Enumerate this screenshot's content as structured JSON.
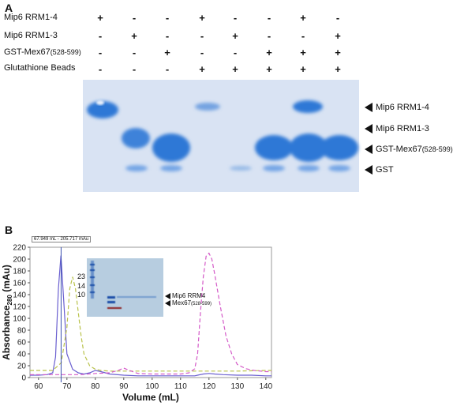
{
  "panel_a": {
    "label": "A",
    "rows": [
      {
        "label": "Mip6 RRM1-4",
        "values": [
          "+",
          "-",
          "-",
          "+",
          "-",
          "-",
          "+",
          "-"
        ]
      },
      {
        "label": "Mip6 RRM1-3",
        "values": [
          "-",
          "+",
          "-",
          "-",
          "+",
          "-",
          "-",
          "+"
        ]
      },
      {
        "label_main": "GST-Mex67",
        "label_sub": "(528-599)",
        "values": [
          "-",
          "-",
          "+",
          "-",
          "-",
          "+",
          "+",
          "+"
        ]
      },
      {
        "label": "Glutathione Beads",
        "values": [
          "-",
          "-",
          "-",
          "+",
          "+",
          "+",
          "+",
          "+"
        ]
      }
    ],
    "band_labels": [
      {
        "text": "Mip6 RRM1-4"
      },
      {
        "text": "Mip6 RRM1-3"
      },
      {
        "text_main": "GST-Mex67",
        "text_sub": "(528-599)"
      },
      {
        "text": "GST"
      }
    ],
    "gel_colors": {
      "background": "#d9e3f3",
      "band": "#2f78d6"
    }
  },
  "panel_b": {
    "label": "B",
    "readout": "67.949 mL - 205.717 mAu",
    "inset": {
      "markers": [
        "23",
        "14",
        "10"
      ],
      "labels": [
        {
          "text": "Mip6 RRM4"
        },
        {
          "text_main": "Mex67",
          "text_sub": "(528-599)"
        }
      ],
      "background": "#b7cde0"
    }
  },
  "chart_data": {
    "type": "line",
    "xlabel": "Volume (mL)",
    "ylabel_main": "Absorbance",
    "ylabel_sub": "280",
    "ylabel_unit": "(mAu)",
    "xlim": [
      57,
      142
    ],
    "ylim": [
      0,
      220
    ],
    "xticks": [
      60,
      70,
      80,
      90,
      100,
      110,
      120,
      130,
      140
    ],
    "yticks": [
      0,
      20,
      40,
      60,
      80,
      100,
      120,
      140,
      160,
      180,
      200,
      220
    ],
    "grid": false,
    "marker_line_x": 67.949,
    "series": [
      {
        "color": "#6a5fd0",
        "style": "solid",
        "x": [
          57,
          60,
          63,
          65,
          66,
          67,
          67.9,
          69,
          70,
          72,
          74,
          76,
          78,
          80,
          82,
          85,
          90,
          95,
          100,
          105,
          110,
          115,
          116,
          118,
          120,
          122,
          125,
          130,
          135,
          140,
          142
        ],
        "y": [
          4,
          4,
          5,
          8,
          35,
          150,
          206,
          120,
          40,
          14,
          8,
          6,
          8,
          12,
          10,
          6,
          4,
          3,
          3,
          3,
          3,
          3,
          4,
          6,
          7,
          6,
          5,
          4,
          4,
          3,
          3
        ]
      },
      {
        "color": "#b9c24a",
        "style": "dashed",
        "x": [
          57,
          60,
          65,
          68,
          70,
          71,
          72,
          73,
          74,
          75,
          76,
          78,
          80,
          82,
          85,
          90,
          95,
          100,
          110,
          120,
          130,
          140,
          142
        ],
        "y": [
          12,
          12,
          12,
          25,
          85,
          150,
          170,
          150,
          110,
          70,
          40,
          20,
          14,
          12,
          11,
          11,
          11,
          11,
          11,
          11,
          11,
          12,
          12
        ]
      },
      {
        "color": "#d45ac8",
        "style": "dashed",
        "x": [
          57,
          60,
          65,
          70,
          75,
          80,
          85,
          88,
          90,
          92,
          95,
          100,
          105,
          110,
          113,
          115,
          116,
          117,
          118,
          119,
          120,
          121,
          122,
          124,
          126,
          128,
          130,
          133,
          136,
          140,
          142
        ],
        "y": [
          5,
          5,
          5,
          5,
          5,
          7,
          8,
          12,
          16,
          12,
          7,
          6,
          6,
          6,
          8,
          15,
          40,
          110,
          170,
          205,
          210,
          200,
          175,
          120,
          70,
          40,
          22,
          15,
          12,
          10,
          10
        ]
      }
    ]
  }
}
